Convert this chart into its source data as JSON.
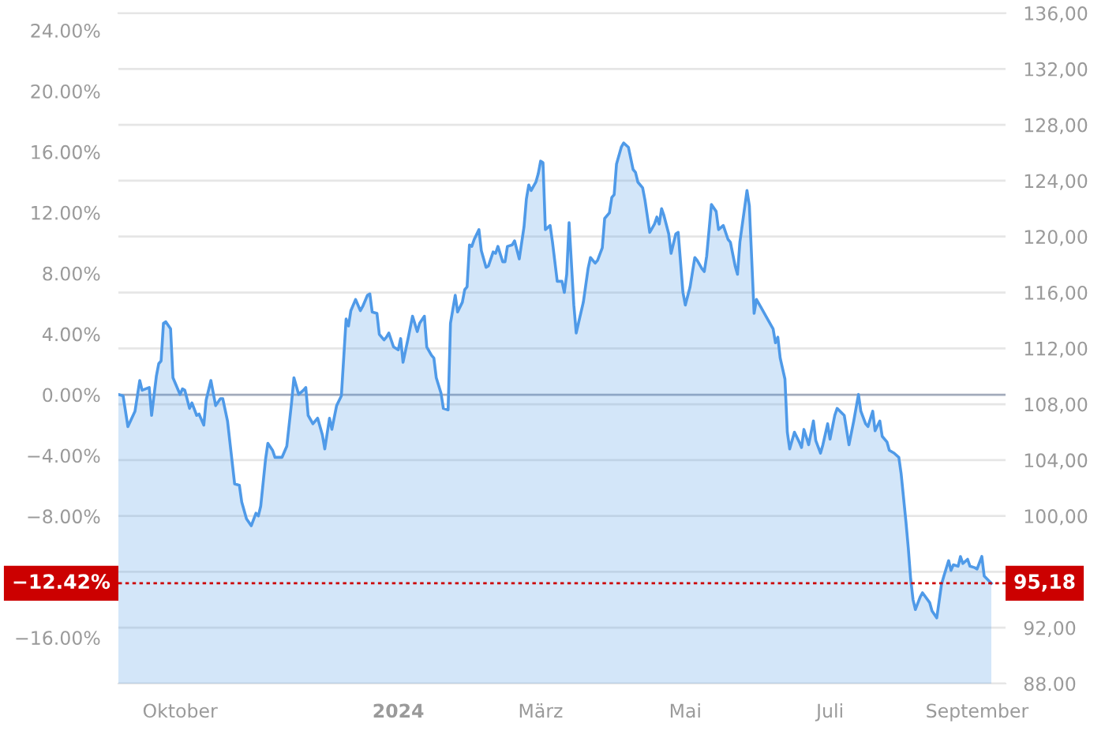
{
  "chart_data": {
    "type": "area",
    "x": [
      "2023-09-05",
      "2023-09-07",
      "2023-09-09",
      "2023-09-12",
      "2023-09-14",
      "2023-09-15",
      "2023-09-18",
      "2023-09-19",
      "2023-09-21",
      "2023-09-22",
      "2023-09-23",
      "2023-09-24",
      "2023-09-25",
      "2023-09-27",
      "2023-09-28",
      "2023-10-01",
      "2023-10-02",
      "2023-10-03",
      "2023-10-05",
      "2023-10-06",
      "2023-10-08",
      "2023-10-09",
      "2023-10-11",
      "2023-10-12",
      "2023-10-14",
      "2023-10-16",
      "2023-10-18",
      "2023-10-19",
      "2023-10-21",
      "2023-10-24",
      "2023-10-26",
      "2023-10-27",
      "2023-10-29",
      "2023-10-31",
      "2023-11-02",
      "2023-11-03",
      "2023-11-04",
      "2023-11-06",
      "2023-11-07",
      "2023-11-09",
      "2023-11-10",
      "2023-11-13",
      "2023-11-15",
      "2023-11-17",
      "2023-11-18",
      "2023-11-20",
      "2023-11-22",
      "2023-11-23",
      "2023-11-24",
      "2023-11-26",
      "2023-11-28",
      "2023-11-30",
      "2023-12-01",
      "2023-12-03",
      "2023-12-04",
      "2023-12-06",
      "2023-12-08",
      "2023-12-10",
      "2023-12-11",
      "2023-12-12",
      "2023-12-14",
      "2023-12-16",
      "2023-12-17",
      "2023-12-19",
      "2023-12-20",
      "2023-12-21",
      "2023-12-23",
      "2023-12-24",
      "2023-12-26",
      "2023-12-27",
      "2023-12-28",
      "2023-12-30",
      "2024-01-01",
      "2024-01-02",
      "2024-01-03",
      "2024-01-05",
      "2024-01-07",
      "2024-01-09",
      "2024-01-10",
      "2024-01-12",
      "2024-01-13",
      "2024-01-15",
      "2024-01-16",
      "2024-01-17",
      "2024-01-19",
      "2024-01-20",
      "2024-01-22",
      "2024-01-23",
      "2024-01-25",
      "2024-01-26",
      "2024-01-28",
      "2024-01-29",
      "2024-01-30",
      "2024-01-31",
      "2024-02-01",
      "2024-02-02",
      "2024-02-04",
      "2024-02-05",
      "2024-02-07",
      "2024-02-08",
      "2024-02-10",
      "2024-02-11",
      "2024-02-12",
      "2024-02-14",
      "2024-02-15",
      "2024-02-16",
      "2024-02-18",
      "2024-02-19",
      "2024-02-21",
      "2024-02-23",
      "2024-02-24",
      "2024-02-25",
      "2024-02-26",
      "2024-02-28",
      "2024-02-29",
      "2024-03-01",
      "2024-03-02",
      "2024-03-03",
      "2024-03-05",
      "2024-03-06",
      "2024-03-08",
      "2024-03-10",
      "2024-03-11",
      "2024-03-12",
      "2024-03-13",
      "2024-03-15",
      "2024-03-16",
      "2024-03-19",
      "2024-03-21",
      "2024-03-22",
      "2024-03-24",
      "2024-03-25",
      "2024-03-27",
      "2024-03-28",
      "2024-03-30",
      "2024-03-31",
      "2024-04-01",
      "2024-04-02",
      "2024-04-04",
      "2024-04-05",
      "2024-04-07",
      "2024-04-09",
      "2024-04-10",
      "2024-04-11",
      "2024-04-13",
      "2024-04-14",
      "2024-04-16",
      "2024-04-18",
      "2024-04-19",
      "2024-04-20",
      "2024-04-21",
      "2024-04-22",
      "2024-04-24",
      "2024-04-25",
      "2024-04-27",
      "2024-04-28",
      "2024-04-30",
      "2024-05-01",
      "2024-05-03",
      "2024-05-05",
      "2024-05-06",
      "2024-05-08",
      "2024-05-09",
      "2024-05-10",
      "2024-05-12",
      "2024-05-14",
      "2024-05-15",
      "2024-05-17",
      "2024-05-19",
      "2024-05-20",
      "2024-05-22",
      "2024-05-23",
      "2024-05-24",
      "2024-05-27",
      "2024-05-28",
      "2024-05-30",
      "2024-05-31",
      "2024-06-02",
      "2024-06-04",
      "2024-06-07",
      "2024-06-08",
      "2024-06-09",
      "2024-06-10",
      "2024-06-12",
      "2024-06-13",
      "2024-06-14",
      "2024-06-16",
      "2024-06-18",
      "2024-06-19",
      "2024-06-20",
      "2024-06-22",
      "2024-06-24",
      "2024-06-25",
      "2024-06-27",
      "2024-06-28",
      "2024-06-30",
      "2024-07-01",
      "2024-07-03",
      "2024-07-04",
      "2024-07-07",
      "2024-07-09",
      "2024-07-11",
      "2024-07-13",
      "2024-07-14",
      "2024-07-16",
      "2024-07-17",
      "2024-07-19",
      "2024-07-20",
      "2024-07-22",
      "2024-07-23",
      "2024-07-25",
      "2024-07-26",
      "2024-07-28",
      "2024-07-30",
      "2024-07-31",
      "2024-08-02",
      "2024-08-03",
      "2024-08-04",
      "2024-08-05",
      "2024-08-06",
      "2024-08-08",
      "2024-08-09",
      "2024-08-12",
      "2024-08-13",
      "2024-08-15",
      "2024-08-17",
      "2024-08-18",
      "2024-08-20",
      "2024-08-21",
      "2024-08-22",
      "2024-08-24",
      "2024-08-25",
      "2024-08-26",
      "2024-08-28",
      "2024-08-29",
      "2024-08-31",
      "2024-09-01",
      "2024-09-03",
      "2024-09-04",
      "2024-09-07"
    ],
    "series": [
      {
        "color": "#4f9ae8",
        "axis": "y2",
        "values": [
          108.7,
          108.6,
          106.4,
          107.5,
          109.7,
          109.0,
          109.2,
          107.2,
          110.0,
          110.9,
          111.1,
          113.8,
          113.9,
          113.4,
          109.9,
          108.7,
          109.1,
          109.0,
          107.7,
          108.1,
          107.2,
          107.3,
          106.5,
          108.3,
          109.7,
          107.9,
          108.4,
          108.4,
          106.8,
          102.3,
          102.2,
          101.0,
          99.8,
          99.3,
          100.2,
          100.0,
          100.7,
          104.0,
          105.2,
          104.7,
          104.2,
          104.2,
          105.0,
          108.1,
          109.9,
          108.7,
          109.0,
          109.2,
          107.2,
          106.6,
          107.0,
          105.8,
          104.8,
          107.0,
          106.2,
          107.9,
          108.6,
          114.1,
          113.6,
          114.7,
          115.5,
          114.7,
          115.0,
          115.8,
          115.9,
          114.6,
          114.5,
          113.0,
          112.6,
          112.8,
          113.1,
          112.1,
          111.9,
          112.7,
          111.0,
          112.6,
          114.3,
          113.2,
          113.8,
          114.3,
          112.1,
          111.5,
          111.3,
          109.9,
          108.8,
          107.7,
          107.6,
          113.8,
          115.8,
          114.6,
          115.3,
          116.2,
          116.4,
          119.4,
          119.3,
          119.8,
          120.5,
          119.0,
          117.8,
          117.9,
          118.9,
          118.8,
          119.3,
          118.2,
          118.2,
          119.3,
          119.4,
          119.7,
          118.4,
          120.7,
          122.7,
          123.7,
          123.3,
          123.9,
          124.5,
          125.4,
          125.3,
          120.5,
          120.8,
          119.6,
          116.8,
          116.8,
          116.0,
          117.3,
          121.0,
          115.1,
          113.1,
          115.3,
          117.7,
          118.5,
          118.1,
          118.3,
          119.2,
          121.3,
          121.7,
          122.8,
          123.0,
          125.2,
          126.4,
          126.7,
          126.4,
          124.8,
          124.6,
          123.9,
          123.5,
          122.6,
          120.3,
          120.9,
          121.4,
          120.9,
          122.0,
          121.5,
          120.2,
          118.8,
          120.2,
          120.3,
          116.0,
          115.1,
          116.4,
          118.5,
          118.3,
          117.7,
          117.5,
          118.6,
          122.3,
          121.8,
          120.5,
          120.8,
          119.8,
          119.6,
          117.9,
          117.3,
          119.6,
          123.3,
          122.2,
          114.5,
          115.5,
          114.9,
          114.3,
          113.4,
          112.4,
          112.8,
          111.3,
          109.8,
          106.0,
          104.8,
          106.0,
          105.3,
          104.9,
          106.2,
          105.1,
          106.8,
          105.4,
          104.5,
          105.1,
          106.6,
          105.5,
          107.2,
          107.7,
          107.2,
          105.1,
          106.8,
          108.7,
          107.5,
          106.6,
          106.4,
          107.5,
          106.1,
          106.8,
          105.7,
          105.3,
          104.7,
          104.5,
          104.2,
          103.0,
          99.6,
          97.7,
          95.5,
          94.0,
          93.3,
          94.2,
          94.5,
          93.8,
          93.2,
          92.7,
          95.1,
          95.7,
          96.8,
          96.1,
          96.5,
          96.4,
          97.1,
          96.6,
          96.9,
          96.4,
          96.3,
          96.2,
          97.1,
          95.7,
          95.18
        ]
      }
    ],
    "xlim": [
      "2023-09-05",
      "2024-09-13"
    ],
    "xticks": [
      {
        "value": "2023-10-01",
        "label": "Oktober"
      },
      {
        "value": "2024-01-01",
        "label": "2024"
      },
      {
        "value": "2024-03-01",
        "label": "März"
      },
      {
        "value": "2024-05-01",
        "label": "Mai"
      },
      {
        "value": "2024-07-01",
        "label": "Juli"
      },
      {
        "value": "2024-09-01",
        "label": "September"
      }
    ],
    "ylim": [
      -19.03,
      25.14
    ],
    "yticks": [
      {
        "value": 24,
        "label": "24.00%"
      },
      {
        "value": 20,
        "label": "20.00%"
      },
      {
        "value": 16,
        "label": "16.00%"
      },
      {
        "value": 12,
        "label": "12.00%"
      },
      {
        "value": 8,
        "label": "8.00%"
      },
      {
        "value": 4,
        "label": "4.00%"
      },
      {
        "value": 0,
        "label": "0.00%"
      },
      {
        "value": -4,
        "label": "−4.00%"
      },
      {
        "value": -8,
        "label": "−8.00%"
      },
      {
        "value": -16,
        "label": "−16.00%"
      }
    ],
    "y2lim": [
      88,
      136
    ],
    "y2ticks": [
      {
        "value": 136,
        "label": "136,00"
      },
      {
        "value": 132,
        "label": "132,00"
      },
      {
        "value": 128,
        "label": "128,00"
      },
      {
        "value": 124,
        "label": "124,00"
      },
      {
        "value": 120,
        "label": "120,00"
      },
      {
        "value": 116,
        "label": "116,00"
      },
      {
        "value": 112,
        "label": "112,00"
      },
      {
        "value": 108,
        "label": "108,00"
      },
      {
        "value": 104,
        "label": "104,00"
      },
      {
        "value": 100,
        "label": "100,00"
      },
      {
        "value": 96,
        "label": null
      },
      {
        "value": 92,
        "label": "92,00"
      },
      {
        "value": 88,
        "label": "88.00"
      }
    ],
    "ref_lines": [
      {
        "axis": "y",
        "value": 0,
        "color": "#a3abbb",
        "line_style": "solid"
      },
      {
        "axis": "y2",
        "value": 95.18,
        "label": "95,18",
        "color": "#cc0000",
        "line_style": "dotted"
      }
    ],
    "annotations": [
      "−12.42%"
    ],
    "grid": "y2"
  }
}
